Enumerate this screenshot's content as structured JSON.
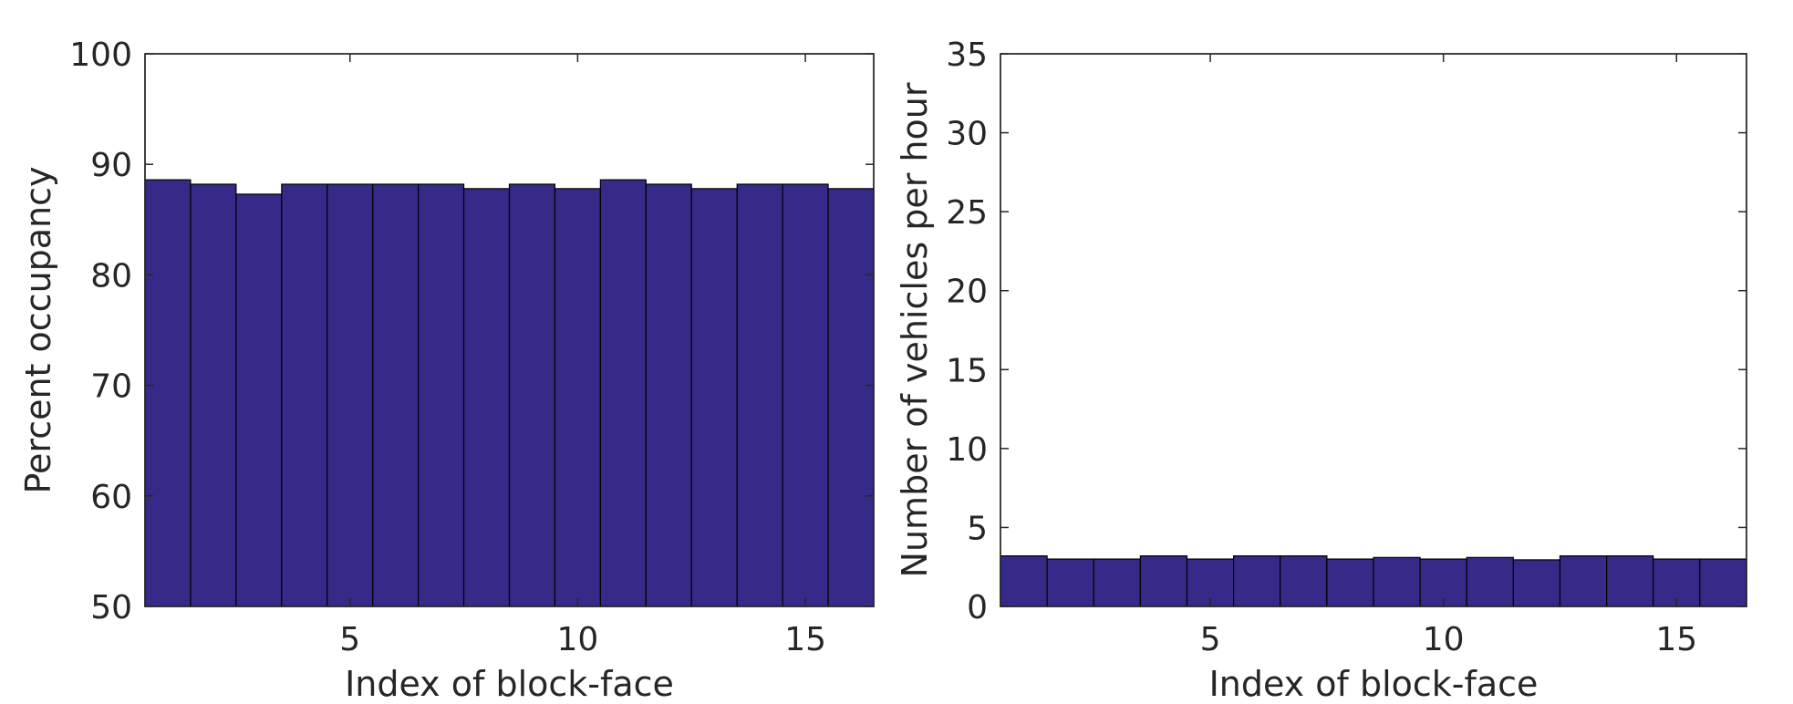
{
  "chart_data": [
    {
      "type": "bar",
      "xlabel": "Index of block-face",
      "ylabel": "Percent occupancy",
      "x": [
        1,
        2,
        3,
        4,
        5,
        6,
        7,
        8,
        9,
        10,
        11,
        12,
        13,
        14,
        15,
        16
      ],
      "values": [
        88.6,
        88.2,
        87.3,
        88.2,
        88.2,
        88.2,
        88.2,
        87.8,
        88.2,
        87.8,
        88.6,
        88.2,
        87.8,
        88.2,
        88.2,
        87.8
      ],
      "ylim": [
        50,
        100
      ],
      "xlim": [
        0.5,
        16.5
      ],
      "yticks": [
        "50",
        "60",
        "70",
        "80",
        "90",
        "100"
      ],
      "xticks": [
        "5",
        "10",
        "15"
      ],
      "bar_color": "#352a87",
      "grid": false
    },
    {
      "type": "bar",
      "xlabel": "Index of block-face",
      "ylabel": "Number of vehicles per hour",
      "x": [
        1,
        2,
        3,
        4,
        5,
        6,
        7,
        8,
        9,
        10,
        11,
        12,
        13,
        14,
        15,
        16
      ],
      "values": [
        3.2,
        3.0,
        3.0,
        3.2,
        3.0,
        3.2,
        3.2,
        3.0,
        3.1,
        3.0,
        3.1,
        2.95,
        3.2,
        3.2,
        3.0,
        3.0
      ],
      "ylim": [
        0,
        35
      ],
      "xlim": [
        0.5,
        16.5
      ],
      "yticks": [
        "0",
        "5",
        "10",
        "15",
        "20",
        "25",
        "30",
        "35"
      ],
      "xticks": [
        "5",
        "10",
        "15"
      ],
      "bar_color": "#352a87",
      "grid": false
    }
  ]
}
